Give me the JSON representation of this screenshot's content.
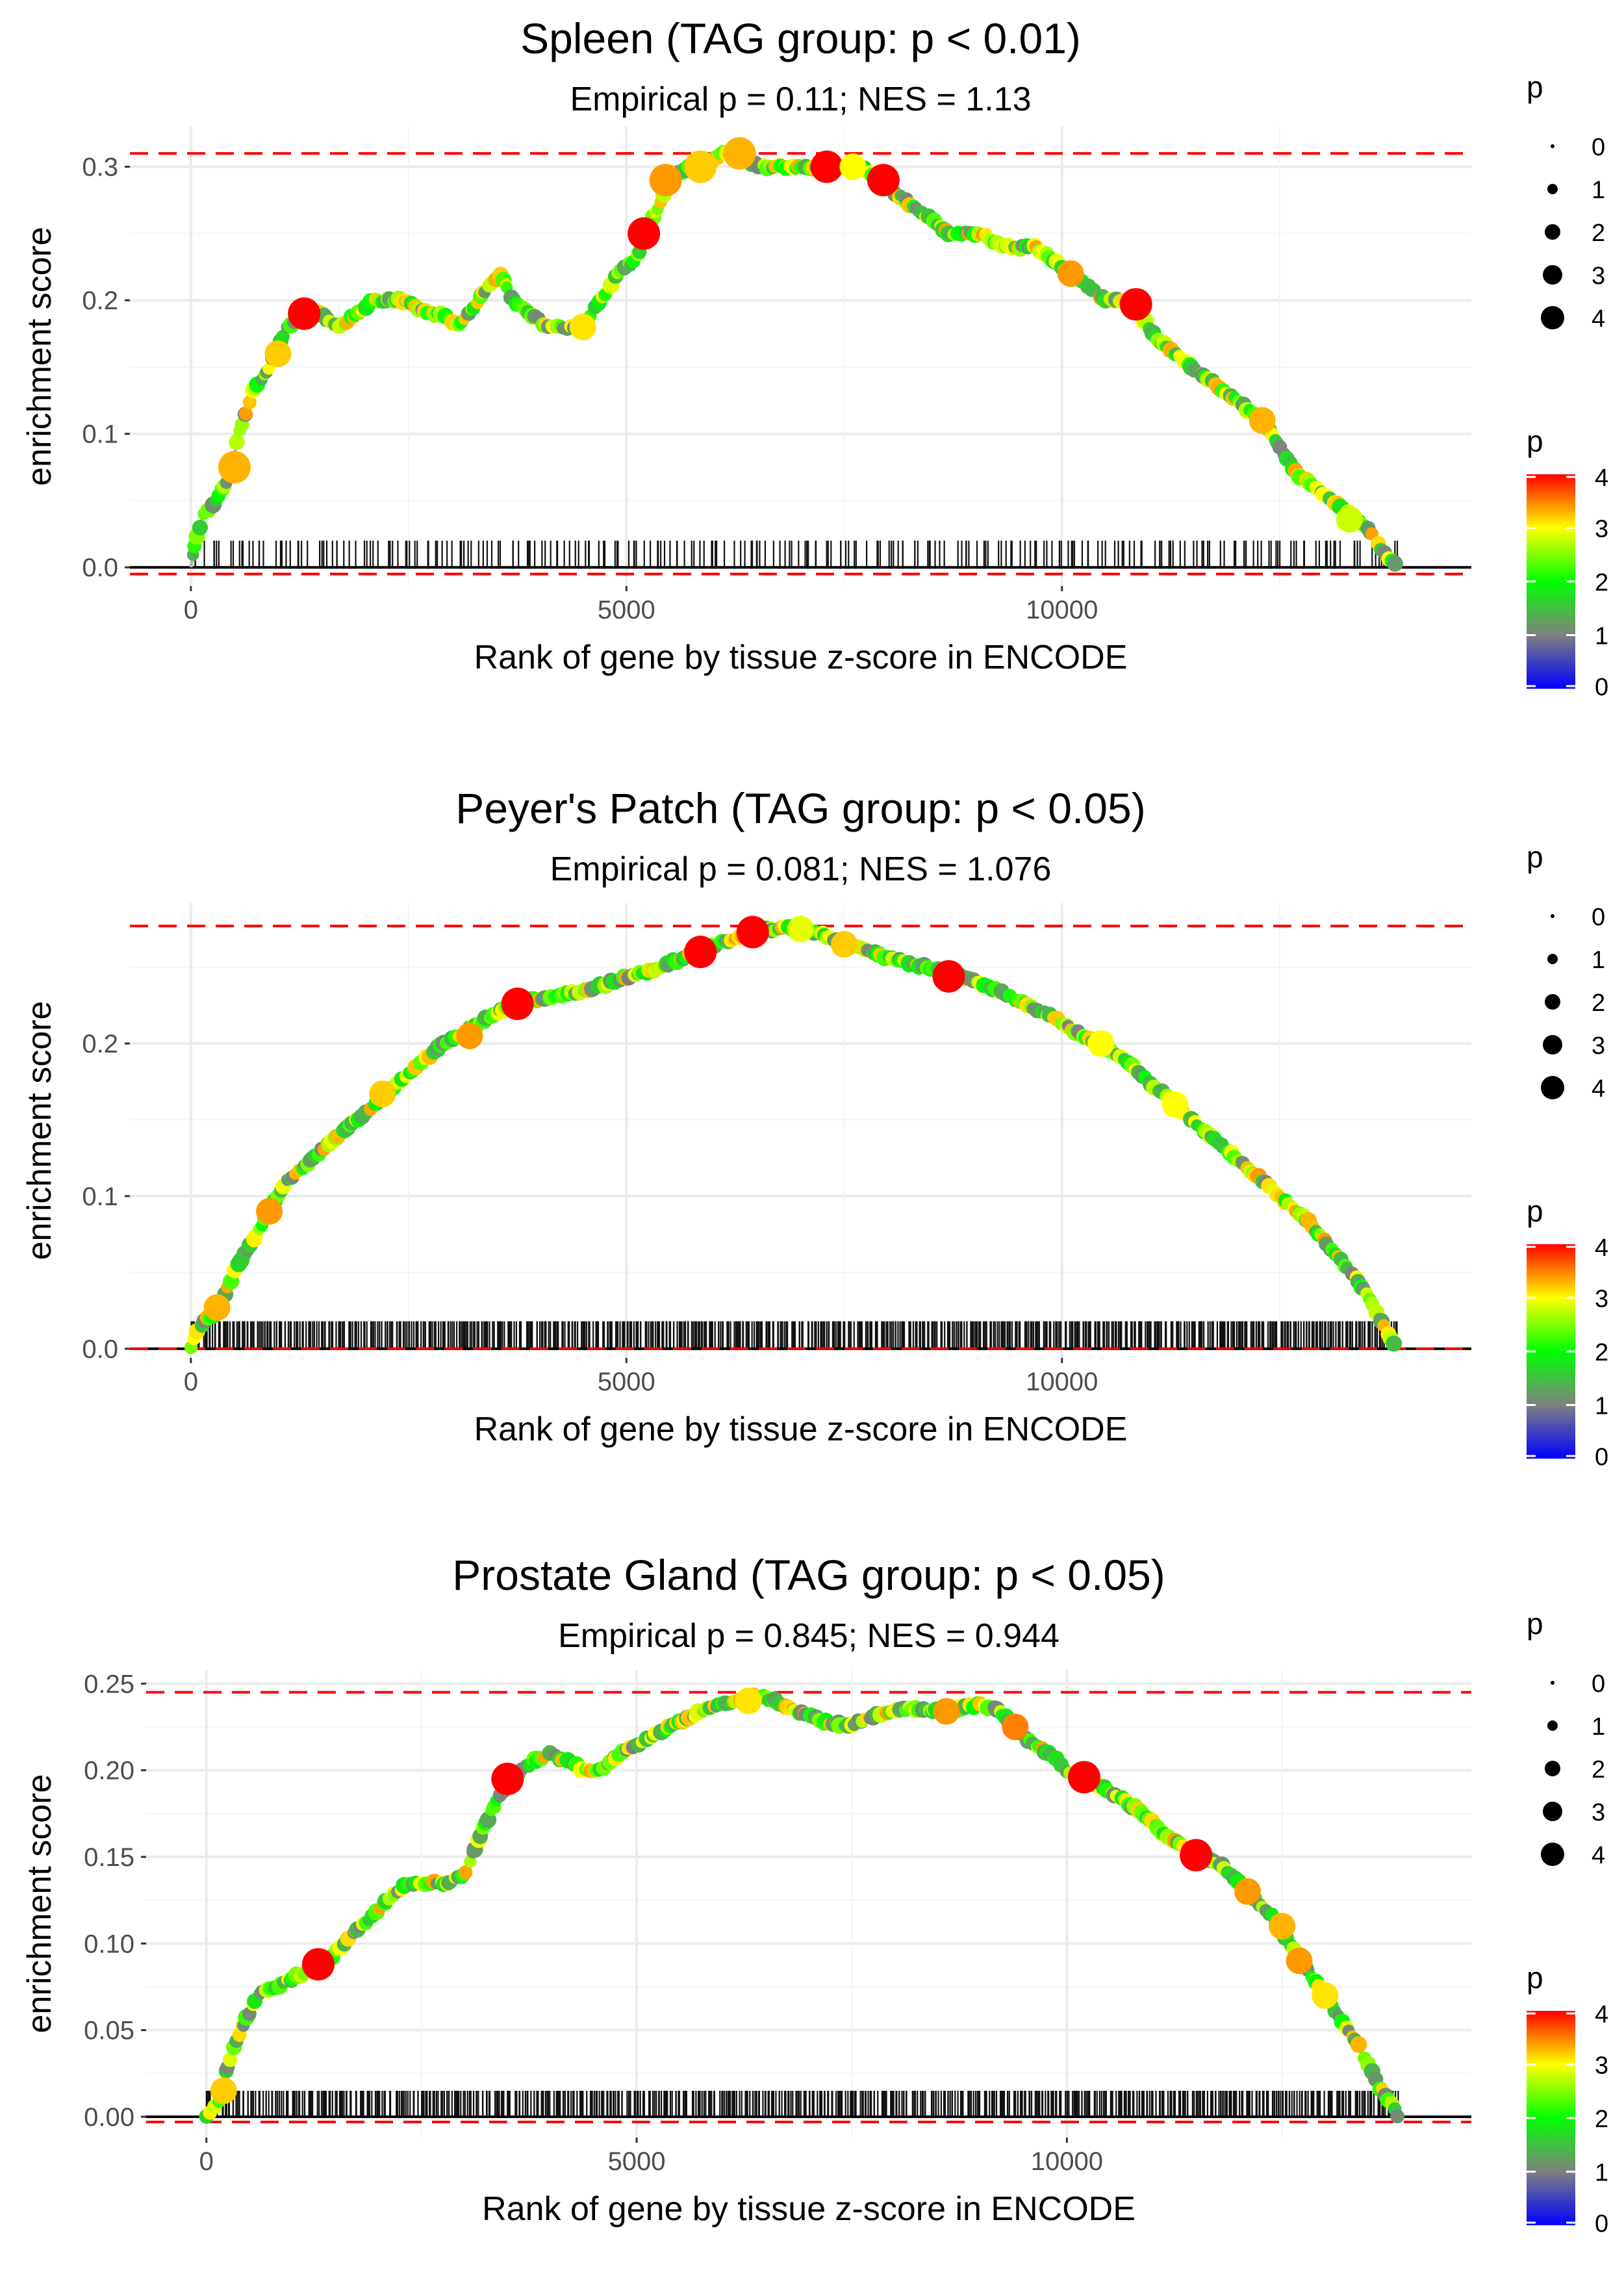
{
  "chart_data": [
    {
      "type": "scatter",
      "title": "Spleen (TAG group: p < 0.01)",
      "subtitle": "Empirical p = 0.11; NES = 1.13",
      "xlabel": "Rank of gene by tissue z-score in ENCODE",
      "ylabel": "enrichment score",
      "xlim": [
        -700,
        14700
      ],
      "ylim": [
        -0.014,
        0.33
      ],
      "xticks": [
        0,
        5000,
        10000
      ],
      "xtick_labels": [
        "0",
        "5000",
        "10000"
      ],
      "yticks": [
        0.0,
        0.1,
        0.2,
        0.3
      ],
      "ytick_labels": [
        "0.0",
        "0.1",
        "0.2",
        "0.3"
      ],
      "hlines": {
        "max": 0.31,
        "min": -0.005
      },
      "rug_top": 0.02,
      "n_rug": 260,
      "curve": [
        [
          0,
          0.0
        ],
        [
          50,
          0.02
        ],
        [
          150,
          0.04
        ],
        [
          300,
          0.05
        ],
        [
          450,
          0.07
        ],
        [
          550,
          0.1
        ],
        [
          700,
          0.13
        ],
        [
          900,
          0.15
        ],
        [
          1100,
          0.18
        ],
        [
          1300,
          0.19
        ],
        [
          1500,
          0.19
        ],
        [
          1700,
          0.18
        ],
        [
          1900,
          0.19
        ],
        [
          2100,
          0.2
        ],
        [
          2300,
          0.2
        ],
        [
          2500,
          0.2
        ],
        [
          2700,
          0.19
        ],
        [
          2900,
          0.19
        ],
        [
          3050,
          0.18
        ],
        [
          3200,
          0.19
        ],
        [
          3400,
          0.21
        ],
        [
          3550,
          0.22
        ],
        [
          3700,
          0.2
        ],
        [
          3900,
          0.19
        ],
        [
          4100,
          0.18
        ],
        [
          4300,
          0.18
        ],
        [
          4500,
          0.18
        ],
        [
          4700,
          0.2
        ],
        [
          4900,
          0.22
        ],
        [
          5100,
          0.23
        ],
        [
          5300,
          0.26
        ],
        [
          5500,
          0.29
        ],
        [
          5700,
          0.3
        ],
        [
          5900,
          0.3
        ],
        [
          6100,
          0.31
        ],
        [
          6300,
          0.31
        ],
        [
          6500,
          0.3
        ],
        [
          6700,
          0.3
        ],
        [
          6900,
          0.3
        ],
        [
          7100,
          0.3
        ],
        [
          7300,
          0.3
        ],
        [
          7500,
          0.3
        ],
        [
          7700,
          0.3
        ],
        [
          7900,
          0.29
        ],
        [
          8100,
          0.28
        ],
        [
          8300,
          0.27
        ],
        [
          8500,
          0.26
        ],
        [
          8700,
          0.25
        ],
        [
          8900,
          0.25
        ],
        [
          9100,
          0.25
        ],
        [
          9300,
          0.24
        ],
        [
          9500,
          0.24
        ],
        [
          9700,
          0.24
        ],
        [
          9900,
          0.23
        ],
        [
          10100,
          0.22
        ],
        [
          10300,
          0.21
        ],
        [
          10500,
          0.2
        ],
        [
          10700,
          0.2
        ],
        [
          10900,
          0.19
        ],
        [
          11100,
          0.17
        ],
        [
          11300,
          0.16
        ],
        [
          11500,
          0.15
        ],
        [
          11700,
          0.14
        ],
        [
          11900,
          0.13
        ],
        [
          12100,
          0.12
        ],
        [
          12300,
          0.11
        ],
        [
          12500,
          0.09
        ],
        [
          12700,
          0.07
        ],
        [
          12900,
          0.06
        ],
        [
          13100,
          0.05
        ],
        [
          13300,
          0.04
        ],
        [
          13500,
          0.03
        ],
        [
          13700,
          0.01
        ],
        [
          13850,
          0.0
        ]
      ],
      "highlights": [
        [
          500,
          0.075,
          4,
          3.3
        ],
        [
          1300,
          0.19,
          4,
          4.0
        ],
        [
          1000,
          0.16,
          3,
          3.2
        ],
        [
          5200,
          0.25,
          4,
          4.0
        ],
        [
          5450,
          0.29,
          4,
          3.4
        ],
        [
          6300,
          0.31,
          4,
          3.3
        ],
        [
          5850,
          0.3,
          4,
          3.2
        ],
        [
          7300,
          0.3,
          4,
          4.0
        ],
        [
          7600,
          0.3,
          3,
          3.0
        ],
        [
          7950,
          0.29,
          4,
          4.0
        ],
        [
          10100,
          0.22,
          3,
          3.4
        ],
        [
          10850,
          0.197,
          4,
          4.0
        ],
        [
          12300,
          0.11,
          3,
          3.3
        ],
        [
          13300,
          0.036,
          3,
          2.8
        ],
        [
          4500,
          0.18,
          3,
          3.1
        ]
      ],
      "legend_size": {
        "title": "p",
        "labels": [
          "0",
          "1",
          "2",
          "3",
          "4"
        ]
      },
      "legend_color": {
        "title": "p",
        "labels": [
          "4",
          "3",
          "2",
          "1",
          "0"
        ],
        "colors": [
          "#0000ff",
          "#808080",
          "#00ff00",
          "#ffff00",
          "#ff0000"
        ]
      }
    },
    {
      "type": "scatter",
      "title": "Peyer's Patch (TAG group: p < 0.05)",
      "subtitle": "Empirical p = 0.081; NES = 1.076",
      "xlabel": "Rank of gene by tissue z-score in ENCODE",
      "ylabel": "enrichment score",
      "xlim": [
        -700,
        14700
      ],
      "ylim": [
        -0.006,
        0.292
      ],
      "xticks": [
        0,
        5000,
        10000
      ],
      "xtick_labels": [
        "0",
        "5000",
        "10000"
      ],
      "yticks": [
        0.0,
        0.1,
        0.2
      ],
      "ytick_labels": [
        "0.0",
        "0.1",
        "0.2"
      ],
      "hlines": {
        "max": 0.277,
        "min": 0.0
      },
      "rug_top": 0.018,
      "n_rug": 750,
      "curve": [
        [
          0,
          0.0
        ],
        [
          100,
          0.015
        ],
        [
          300,
          0.025
        ],
        [
          500,
          0.05
        ],
        [
          700,
          0.07
        ],
        [
          900,
          0.09
        ],
        [
          1100,
          0.11
        ],
        [
          1300,
          0.12
        ],
        [
          1500,
          0.13
        ],
        [
          1700,
          0.14
        ],
        [
          1900,
          0.15
        ],
        [
          2100,
          0.16
        ],
        [
          2300,
          0.17
        ],
        [
          2600,
          0.185
        ],
        [
          2900,
          0.2
        ],
        [
          3200,
          0.21
        ],
        [
          3500,
          0.22
        ],
        [
          3800,
          0.228
        ],
        [
          4100,
          0.23
        ],
        [
          4400,
          0.233
        ],
        [
          4700,
          0.238
        ],
        [
          5000,
          0.243
        ],
        [
          5300,
          0.248
        ],
        [
          5600,
          0.255
        ],
        [
          5900,
          0.262
        ],
        [
          6200,
          0.268
        ],
        [
          6500,
          0.273
        ],
        [
          6800,
          0.276
        ],
        [
          7100,
          0.274
        ],
        [
          7400,
          0.268
        ],
        [
          7700,
          0.262
        ],
        [
          8000,
          0.256
        ],
        [
          8300,
          0.252
        ],
        [
          8600,
          0.248
        ],
        [
          8900,
          0.243
        ],
        [
          9200,
          0.236
        ],
        [
          9500,
          0.228
        ],
        [
          9800,
          0.22
        ],
        [
          10100,
          0.21
        ],
        [
          10400,
          0.2
        ],
        [
          10700,
          0.19
        ],
        [
          11000,
          0.175
        ],
        [
          11300,
          0.16
        ],
        [
          11600,
          0.145
        ],
        [
          11900,
          0.13
        ],
        [
          12200,
          0.115
        ],
        [
          12500,
          0.1
        ],
        [
          12800,
          0.085
        ],
        [
          13100,
          0.065
        ],
        [
          13400,
          0.045
        ],
        [
          13600,
          0.025
        ],
        [
          13800,
          0.005
        ],
        [
          13850,
          0.0
        ]
      ],
      "highlights": [
        [
          300,
          0.027,
          3,
          3.3
        ],
        [
          900,
          0.09,
          3,
          3.4
        ],
        [
          2200,
          0.167,
          3,
          3.2
        ],
        [
          3200,
          0.205,
          3,
          3.4
        ],
        [
          3750,
          0.226,
          4,
          4.0
        ],
        [
          5850,
          0.26,
          4,
          4.0
        ],
        [
          6450,
          0.273,
          4,
          4.0
        ],
        [
          7500,
          0.265,
          3,
          3.2
        ],
        [
          8700,
          0.244,
          4,
          4.0
        ],
        [
          10450,
          0.2,
          3,
          3.0
        ],
        [
          11300,
          0.16,
          3,
          3.0
        ],
        [
          7000,
          0.275,
          3,
          2.9
        ]
      ],
      "legend_size": {
        "title": "p",
        "labels": [
          "0",
          "1",
          "2",
          "3",
          "4"
        ]
      },
      "legend_color": {
        "title": "p",
        "labels": [
          "4",
          "3",
          "2",
          "1",
          "0"
        ],
        "colors": [
          "#0000ff",
          "#808080",
          "#00ff00",
          "#ffff00",
          "#ff0000"
        ]
      }
    },
    {
      "type": "scatter",
      "title": "Prostate Gland (TAG group: p < 0.05)",
      "subtitle": "Empirical p = 0.845; NES = 0.944",
      "xlabel": "Rank of gene by tissue z-score in ENCODE",
      "ylabel": "enrichment score",
      "xlim": [
        -700,
        14700
      ],
      "ylim": [
        -0.012,
        0.258
      ],
      "xticks": [
        0,
        5000,
        10000
      ],
      "xtick_labels": [
        "0",
        "5000",
        "10000"
      ],
      "yticks": [
        0.0,
        0.05,
        0.1,
        0.15,
        0.2,
        0.25
      ],
      "ytick_labels": [
        "0.00",
        "0.05",
        "0.10",
        "0.15",
        "0.20",
        "0.25"
      ],
      "hlines": {
        "max": 0.245,
        "min": -0.003
      },
      "rug_top": 0.015,
      "n_rug": 700,
      "curve": [
        [
          0,
          0.0
        ],
        [
          150,
          0.01
        ],
        [
          250,
          0.03
        ],
        [
          400,
          0.05
        ],
        [
          600,
          0.07
        ],
        [
          800,
          0.075
        ],
        [
          1000,
          0.08
        ],
        [
          1200,
          0.085
        ],
        [
          1400,
          0.09
        ],
        [
          1600,
          0.1
        ],
        [
          1800,
          0.11
        ],
        [
          2000,
          0.12
        ],
        [
          2200,
          0.13
        ],
        [
          2400,
          0.135
        ],
        [
          2600,
          0.135
        ],
        [
          2800,
          0.135
        ],
        [
          3000,
          0.14
        ],
        [
          3200,
          0.165
        ],
        [
          3400,
          0.185
        ],
        [
          3600,
          0.198
        ],
        [
          3800,
          0.205
        ],
        [
          4000,
          0.21
        ],
        [
          4200,
          0.205
        ],
        [
          4400,
          0.2
        ],
        [
          4600,
          0.2
        ],
        [
          4800,
          0.21
        ],
        [
          5000,
          0.215
        ],
        [
          5200,
          0.22
        ],
        [
          5400,
          0.225
        ],
        [
          5600,
          0.23
        ],
        [
          5800,
          0.235
        ],
        [
          6000,
          0.238
        ],
        [
          6200,
          0.24
        ],
        [
          6400,
          0.243
        ],
        [
          6600,
          0.24
        ],
        [
          6800,
          0.235
        ],
        [
          7000,
          0.232
        ],
        [
          7200,
          0.228
        ],
        [
          7400,
          0.226
        ],
        [
          7600,
          0.228
        ],
        [
          7800,
          0.232
        ],
        [
          8000,
          0.235
        ],
        [
          8200,
          0.236
        ],
        [
          8400,
          0.235
        ],
        [
          8600,
          0.234
        ],
        [
          8800,
          0.236
        ],
        [
          9000,
          0.238
        ],
        [
          9200,
          0.235
        ],
        [
          9400,
          0.225
        ],
        [
          9600,
          0.215
        ],
        [
          9800,
          0.21
        ],
        [
          10000,
          0.2
        ],
        [
          10200,
          0.195
        ],
        [
          10400,
          0.19
        ],
        [
          10600,
          0.185
        ],
        [
          10800,
          0.178
        ],
        [
          11000,
          0.17
        ],
        [
          11200,
          0.16
        ],
        [
          11400,
          0.155
        ],
        [
          11600,
          0.15
        ],
        [
          11800,
          0.145
        ],
        [
          12000,
          0.135
        ],
        [
          12200,
          0.125
        ],
        [
          12400,
          0.115
        ],
        [
          12600,
          0.1
        ],
        [
          12800,
          0.085
        ],
        [
          13000,
          0.07
        ],
        [
          13200,
          0.055
        ],
        [
          13400,
          0.04
        ],
        [
          13600,
          0.02
        ],
        [
          13800,
          0.005
        ],
        [
          13850,
          0.0
        ]
      ],
      "highlights": [
        [
          200,
          0.015,
          3,
          3.2
        ],
        [
          1300,
          0.088,
          4,
          4.0
        ],
        [
          3500,
          0.195,
          4,
          4.0
        ],
        [
          6300,
          0.24,
          3,
          3.1
        ],
        [
          8600,
          0.234,
          3,
          3.4
        ],
        [
          9400,
          0.225,
          3,
          3.5
        ],
        [
          10200,
          0.196,
          4,
          4.0
        ],
        [
          11500,
          0.151,
          4,
          4.0
        ],
        [
          12100,
          0.13,
          3,
          3.4
        ],
        [
          12500,
          0.11,
          3,
          3.3
        ],
        [
          12700,
          0.09,
          3,
          3.4
        ],
        [
          13000,
          0.07,
          3,
          3.1
        ]
      ],
      "legend_size": {
        "title": "p",
        "labels": [
          "0",
          "1",
          "2",
          "3",
          "4"
        ]
      },
      "legend_color": {
        "title": "p",
        "labels": [
          "4",
          "3",
          "2",
          "1",
          "0"
        ],
        "colors": [
          "#0000ff",
          "#808080",
          "#00ff00",
          "#ffff00",
          "#ff0000"
        ]
      }
    }
  ]
}
